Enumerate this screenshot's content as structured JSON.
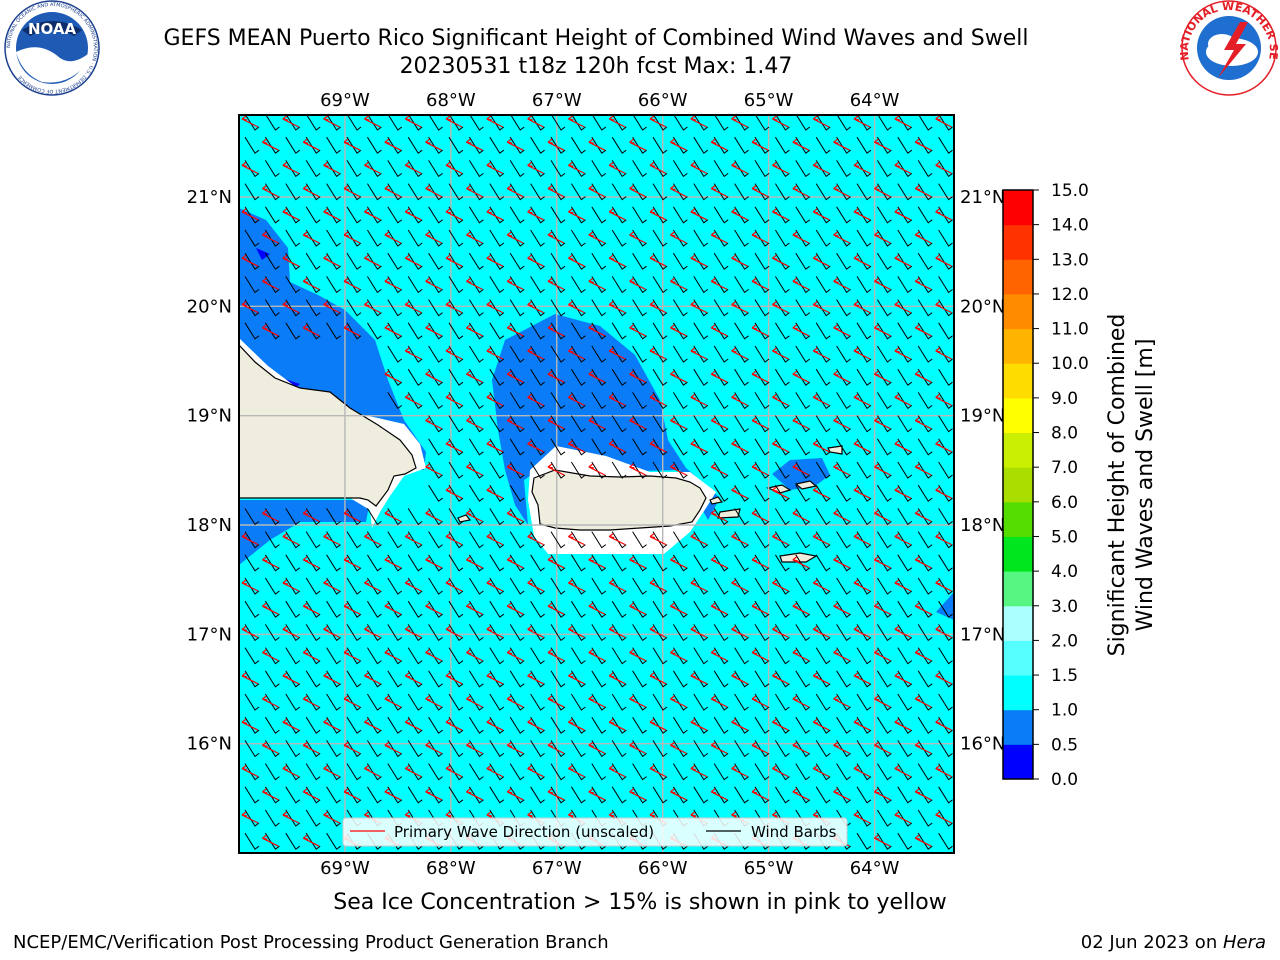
{
  "title": {
    "line1": "GEFS MEAN Puerto Rico Significant Height of Combined Wind Waves and Swell",
    "line2": "20230531 t18z 120h fcst   Max: 1.47"
  },
  "logos": {
    "left": "noaa-logo",
    "right": "nws-logo",
    "left_text": "NOAA",
    "left_ring_text": "NATIONAL OCEANIC AND ATMOSPHERIC ADMINISTRATION · U.S. DEPARTMENT OF COMMERCE",
    "right_ring_text": "NATIONAL WEATHER SERVICE"
  },
  "map": {
    "lon_range": [
      -70.0,
      -63.25
    ],
    "lat_range": [
      15.0,
      21.75
    ],
    "lon_ticks": [
      -69,
      -68,
      -67,
      -66,
      -65,
      -64
    ],
    "lon_tick_labels": [
      "69°W",
      "68°W",
      "67°W",
      "66°W",
      "65°W",
      "64°W"
    ],
    "lat_ticks": [
      16,
      17,
      18,
      19,
      20,
      21
    ],
    "lat_tick_labels": [
      "16°N",
      "17°N",
      "18°N",
      "19°N",
      "20°N",
      "21°N"
    ],
    "grid": true,
    "ocean_color": "#00ffff",
    "land_color": "#efedde",
    "wave_arrow_color": "#ff0000",
    "wind_barb_color": "#000000"
  },
  "colorbar": {
    "label_line1": "Significant Height of Combined",
    "label_line2": "Wind Waves and Swell [m]",
    "levels": [
      0.0,
      0.5,
      1.0,
      1.5,
      2.0,
      3.0,
      4.0,
      5.0,
      6.0,
      7.0,
      8.0,
      9.0,
      10.0,
      11.0,
      12.0,
      13.0,
      14.0,
      15.0
    ],
    "tick_labels": [
      "0.0",
      "0.5",
      "1.0",
      "1.5",
      "2.0",
      "3.0",
      "4.0",
      "5.0",
      "6.0",
      "7.0",
      "8.0",
      "9.0",
      "10.0",
      "11.0",
      "12.0",
      "13.0",
      "14.0",
      "15.0"
    ],
    "colors": [
      "#0000ff",
      "#0a7cf7",
      "#00ffff",
      "#55ffff",
      "#aaffff",
      "#57f683",
      "#00e61e",
      "#55dd00",
      "#aadd00",
      "#cbef00",
      "#ffff00",
      "#ffdc00",
      "#ffb400",
      "#ff8c00",
      "#ff6400",
      "#ff3200",
      "#ff0000"
    ]
  },
  "legend": {
    "wave_label": "Primary Wave Direction (unscaled)",
    "wind_label": "Wind Barbs"
  },
  "footer": {
    "note": "Sea Ice Concentration > 15% is shown in pink to yellow",
    "left": "NCEP/EMC/Verification Post Processing Product Generation Branch",
    "right_prefix": "02 Jun 2023 on ",
    "right_host": "Hera"
  }
}
